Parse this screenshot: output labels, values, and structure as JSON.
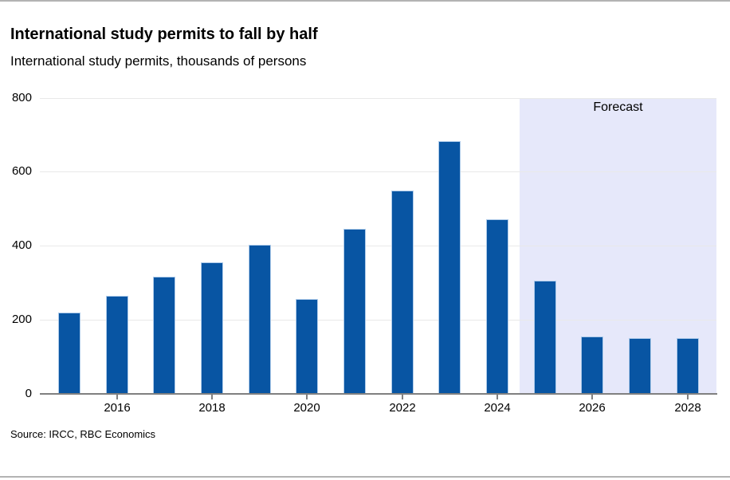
{
  "chart_data": {
    "type": "bar",
    "title": "International study permits to fall by half",
    "subtitle": "International study permits, thousands of persons",
    "ylabel": "International study permits, thousands of persons",
    "categories": [
      2015,
      2016,
      2017,
      2018,
      2019,
      2020,
      2021,
      2022,
      2023,
      2024,
      2025,
      2026,
      2027,
      2028
    ],
    "values": [
      220,
      266,
      317,
      355,
      403,
      256,
      446,
      549,
      683,
      472,
      306,
      156,
      150,
      150
    ],
    "ylim": [
      0,
      800
    ],
    "yticks": [
      0,
      200,
      400,
      600,
      800
    ],
    "xticks": [
      2016,
      2018,
      2020,
      2022,
      2024,
      2026,
      2028
    ],
    "grid": true,
    "legend": "none",
    "forecast": {
      "label": "Forecast",
      "start_year": 2025,
      "band_color": "#e6e8fa"
    },
    "bar_color": "#0855a3",
    "source": "Source: IRCC, RBC Economics"
  },
  "colors": {
    "bar": "#0855a3",
    "bar_edge": "#aecbea",
    "forecast_band": "#e6e8fa",
    "gridline": "#e9e9e9",
    "axis": "#808080",
    "page_border": "#b3b3b3",
    "text": "#000000"
  }
}
